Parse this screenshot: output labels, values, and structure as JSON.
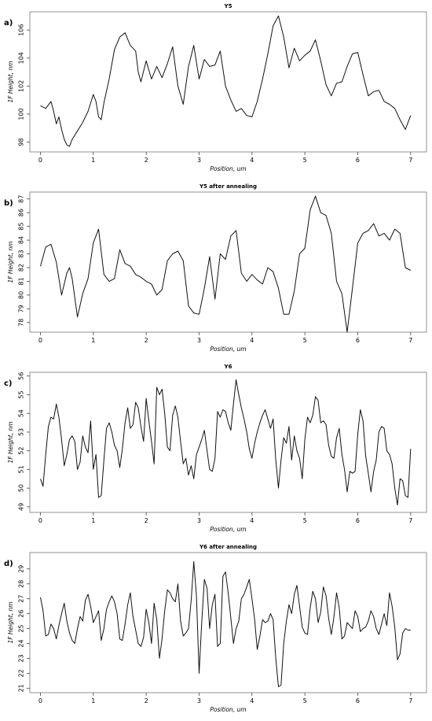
{
  "chart_data": [
    {
      "type": "line",
      "panel_label": "a)",
      "title": "Y5",
      "xlabel": "Position, um",
      "ylabel": "1F Height, nm",
      "xlim": [
        -0.2,
        7.3
      ],
      "ylim": [
        97.3,
        107.3
      ],
      "xticks": [
        0,
        1,
        2,
        3,
        4,
        5,
        6,
        7
      ],
      "yticks": [
        98,
        100,
        102,
        104,
        106
      ],
      "grid": false,
      "series": [
        {
          "x": [
            0.0,
            0.1,
            0.2,
            0.25,
            0.3,
            0.35,
            0.4,
            0.45,
            0.5,
            0.55,
            0.6,
            0.7,
            0.8,
            0.9,
            1.0,
            1.05,
            1.1,
            1.15,
            1.2,
            1.3,
            1.4,
            1.5,
            1.6,
            1.7,
            1.8,
            1.85,
            1.9,
            2.0,
            2.1,
            2.2,
            2.3,
            2.4,
            2.5,
            2.6,
            2.7,
            2.8,
            2.9,
            3.0,
            3.1,
            3.2,
            3.3,
            3.4,
            3.5,
            3.6,
            3.7,
            3.8,
            3.9,
            4.0,
            4.1,
            4.2,
            4.3,
            4.4,
            4.5,
            4.6,
            4.7,
            4.8,
            4.9,
            5.0,
            5.1,
            5.2,
            5.3,
            5.4,
            5.5,
            5.6,
            5.7,
            5.8,
            5.9,
            6.0,
            6.1,
            6.2,
            6.3,
            6.4,
            6.5,
            6.6,
            6.7,
            6.8,
            6.9,
            7.0
          ],
          "values": [
            100.6,
            100.4,
            100.9,
            100.2,
            99.3,
            99.8,
            98.9,
            98.2,
            97.8,
            97.7,
            98.2,
            98.8,
            99.4,
            100.2,
            101.4,
            100.9,
            99.8,
            99.6,
            100.8,
            102.5,
            104.6,
            105.5,
            105.8,
            104.9,
            104.5,
            103.0,
            102.3,
            103.8,
            102.5,
            103.4,
            102.6,
            103.6,
            104.8,
            102.0,
            100.7,
            103.4,
            104.9,
            102.5,
            103.9,
            103.4,
            103.5,
            104.5,
            102.0,
            101.0,
            100.2,
            100.4,
            99.9,
            99.8,
            100.9,
            102.5,
            104.3,
            106.3,
            107.0,
            105.5,
            103.3,
            104.7,
            103.8,
            104.2,
            104.5,
            105.3,
            103.8,
            102.1,
            101.3,
            102.2,
            102.3,
            103.4,
            104.3,
            104.4,
            102.8,
            101.3,
            101.6,
            101.7,
            100.9,
            100.7,
            100.4,
            99.6,
            98.9,
            99.9
          ]
        }
      ]
    },
    {
      "type": "line",
      "panel_label": "b)",
      "title": "Y5 after annealing",
      "xlabel": "Position, um",
      "ylabel": "1F Height, nm",
      "xlim": [
        -0.2,
        7.3
      ],
      "ylim": [
        77.3,
        87.5
      ],
      "xticks": [
        0,
        1,
        2,
        3,
        4,
        5,
        6,
        7
      ],
      "yticks": [
        78,
        79,
        80,
        81,
        82,
        83,
        84,
        85,
        86,
        87
      ],
      "grid": false,
      "series": [
        {
          "x": [
            0.0,
            0.1,
            0.2,
            0.3,
            0.4,
            0.5,
            0.55,
            0.6,
            0.7,
            0.8,
            0.9,
            1.0,
            1.1,
            1.2,
            1.3,
            1.4,
            1.5,
            1.6,
            1.7,
            1.8,
            1.9,
            2.0,
            2.1,
            2.2,
            2.3,
            2.4,
            2.5,
            2.6,
            2.7,
            2.8,
            2.9,
            3.0,
            3.1,
            3.2,
            3.3,
            3.4,
            3.5,
            3.6,
            3.7,
            3.8,
            3.9,
            4.0,
            4.1,
            4.2,
            4.3,
            4.4,
            4.5,
            4.6,
            4.7,
            4.8,
            4.9,
            5.0,
            5.1,
            5.2,
            5.3,
            5.4,
            5.5,
            5.6,
            5.7,
            5.8,
            5.9,
            6.0,
            6.1,
            6.2,
            6.3,
            6.4,
            6.5,
            6.6,
            6.7,
            6.8,
            6.9,
            7.0
          ],
          "values": [
            82.1,
            83.5,
            83.7,
            82.4,
            80.0,
            81.6,
            82.0,
            81.2,
            78.4,
            80.1,
            81.2,
            83.8,
            84.8,
            81.5,
            81.0,
            81.2,
            83.3,
            82.3,
            82.1,
            81.5,
            81.3,
            81.0,
            80.8,
            80.0,
            80.4,
            82.5,
            83.0,
            83.2,
            82.5,
            79.2,
            78.7,
            78.6,
            80.5,
            82.8,
            79.7,
            83.0,
            82.6,
            84.3,
            84.7,
            81.6,
            81.0,
            81.5,
            81.1,
            80.8,
            82.0,
            81.7,
            80.5,
            78.6,
            78.6,
            80.3,
            83.0,
            83.4,
            86.2,
            87.2,
            86.0,
            85.8,
            84.5,
            81.0,
            80.1,
            77.3,
            80.5,
            83.8,
            84.5,
            84.7,
            85.2,
            84.3,
            84.5,
            84.0,
            84.8,
            84.5,
            82.0,
            81.8
          ]
        }
      ]
    },
    {
      "type": "line",
      "panel_label": "c)",
      "title": "Y6",
      "xlabel": "Position, um",
      "ylabel": "1F Height, nm",
      "xlim": [
        -0.2,
        7.3
      ],
      "ylim": [
        48.7,
        56.2
      ],
      "xticks": [
        0,
        1,
        2,
        3,
        4,
        5,
        6,
        7
      ],
      "yticks": [
        49,
        50,
        51,
        52,
        53,
        54,
        55,
        56
      ],
      "grid": false,
      "series": [
        {
          "x": [
            0.0,
            0.05,
            0.1,
            0.15,
            0.2,
            0.25,
            0.3,
            0.35,
            0.4,
            0.45,
            0.5,
            0.55,
            0.6,
            0.65,
            0.7,
            0.75,
            0.8,
            0.85,
            0.9,
            0.95,
            1.0,
            1.05,
            1.1,
            1.15,
            1.2,
            1.25,
            1.3,
            1.35,
            1.4,
            1.45,
            1.5,
            1.55,
            1.6,
            1.65,
            1.7,
            1.75,
            1.8,
            1.85,
            1.9,
            1.95,
            2.0,
            2.05,
            2.1,
            2.15,
            2.2,
            2.25,
            2.3,
            2.35,
            2.4,
            2.45,
            2.5,
            2.55,
            2.6,
            2.65,
            2.7,
            2.75,
            2.8,
            2.85,
            2.9,
            2.95,
            3.0,
            3.05,
            3.1,
            3.15,
            3.2,
            3.25,
            3.3,
            3.35,
            3.4,
            3.45,
            3.5,
            3.55,
            3.6,
            3.65,
            3.7,
            3.75,
            3.8,
            3.85,
            3.9,
            3.95,
            4.0,
            4.05,
            4.1,
            4.15,
            4.2,
            4.25,
            4.3,
            4.35,
            4.4,
            4.45,
            4.5,
            4.55,
            4.6,
            4.65,
            4.7,
            4.75,
            4.8,
            4.85,
            4.9,
            4.95,
            5.0,
            5.05,
            5.1,
            5.15,
            5.2,
            5.25,
            5.3,
            5.35,
            5.4,
            5.45,
            5.5,
            5.55,
            5.6,
            5.65,
            5.7,
            5.75,
            5.8,
            5.85,
            5.9,
            5.95,
            6.0,
            6.05,
            6.1,
            6.15,
            6.2,
            6.25,
            6.3,
            6.35,
            6.4,
            6.45,
            6.5,
            6.55,
            6.6,
            6.65,
            6.7,
            6.75,
            6.8,
            6.85,
            6.9,
            6.95,
            7.0
          ],
          "values": [
            50.5,
            50.1,
            51.8,
            53.3,
            53.8,
            53.7,
            54.5,
            53.8,
            52.6,
            51.2,
            51.8,
            52.6,
            52.8,
            52.5,
            51.0,
            51.4,
            52.8,
            52.2,
            51.9,
            53.6,
            51.0,
            51.8,
            49.5,
            49.6,
            51.5,
            53.2,
            53.5,
            53.0,
            52.3,
            52.0,
            51.1,
            52.1,
            53.5,
            54.3,
            53.2,
            53.4,
            54.6,
            54.3,
            53.3,
            52.5,
            54.8,
            53.6,
            52.5,
            51.3,
            55.4,
            55.0,
            55.3,
            54.0,
            52.2,
            52.0,
            53.9,
            54.4,
            53.8,
            52.5,
            51.3,
            51.6,
            50.7,
            51.2,
            50.5,
            51.8,
            52.2,
            52.6,
            53.1,
            52.0,
            51.0,
            50.9,
            51.6,
            54.1,
            53.8,
            54.2,
            54.1,
            53.5,
            53.1,
            54.5,
            55.8,
            55.0,
            54.3,
            53.7,
            53.0,
            52.1,
            51.6,
            52.4,
            53.0,
            53.5,
            53.9,
            54.2,
            53.7,
            53.2,
            53.7,
            51.5,
            50.0,
            51.5,
            52.7,
            52.4,
            53.3,
            51.5,
            52.8,
            52.0,
            51.6,
            50.5,
            52.6,
            53.8,
            53.5,
            53.9,
            54.9,
            54.7,
            53.5,
            53.6,
            53.4,
            52.3,
            51.7,
            51.6,
            52.7,
            53.2,
            51.8,
            51.0,
            49.8,
            50.9,
            50.8,
            50.9,
            52.9,
            54.2,
            53.6,
            51.7,
            50.8,
            49.8,
            50.9,
            51.5,
            53.0,
            53.3,
            53.2,
            52.0,
            51.8,
            51.3,
            50.0,
            49.1,
            50.5,
            50.4,
            49.6,
            49.5,
            52.1
          ]
        }
      ]
    },
    {
      "type": "line",
      "panel_label": "d)",
      "title": "Y6 after annealing",
      "xlabel": "Position, um",
      "ylabel": "1F Height, nm",
      "xlim": [
        -0.2,
        7.3
      ],
      "ylim": [
        20.7,
        30.1
      ],
      "xticks": [
        0,
        1,
        2,
        3,
        4,
        5,
        6,
        7
      ],
      "yticks": [
        21,
        22,
        23,
        24,
        25,
        26,
        27,
        28,
        29
      ],
      "grid": false,
      "series": [
        {
          "x": [
            0.0,
            0.05,
            0.1,
            0.15,
            0.2,
            0.25,
            0.3,
            0.35,
            0.4,
            0.45,
            0.5,
            0.55,
            0.6,
            0.65,
            0.7,
            0.75,
            0.8,
            0.85,
            0.9,
            0.95,
            1.0,
            1.05,
            1.1,
            1.15,
            1.2,
            1.25,
            1.3,
            1.35,
            1.4,
            1.45,
            1.5,
            1.55,
            1.6,
            1.65,
            1.7,
            1.75,
            1.8,
            1.85,
            1.9,
            1.95,
            2.0,
            2.05,
            2.1,
            2.15,
            2.2,
            2.25,
            2.3,
            2.35,
            2.4,
            2.45,
            2.5,
            2.55,
            2.6,
            2.65,
            2.7,
            2.75,
            2.8,
            2.85,
            2.9,
            2.95,
            3.0,
            3.05,
            3.1,
            3.15,
            3.2,
            3.25,
            3.3,
            3.35,
            3.4,
            3.45,
            3.5,
            3.55,
            3.6,
            3.65,
            3.7,
            3.75,
            3.8,
            3.85,
            3.9,
            3.95,
            4.0,
            4.05,
            4.1,
            4.15,
            4.2,
            4.25,
            4.3,
            4.35,
            4.4,
            4.45,
            4.5,
            4.55,
            4.6,
            4.65,
            4.7,
            4.75,
            4.8,
            4.85,
            4.9,
            4.95,
            5.0,
            5.05,
            5.1,
            5.15,
            5.2,
            5.25,
            5.3,
            5.35,
            5.4,
            5.45,
            5.5,
            5.55,
            5.6,
            5.65,
            5.7,
            5.75,
            5.8,
            5.85,
            5.9,
            5.95,
            6.0,
            6.05,
            6.1,
            6.15,
            6.2,
            6.25,
            6.3,
            6.35,
            6.4,
            6.45,
            6.5,
            6.55,
            6.6,
            6.65,
            6.7,
            6.75,
            6.8,
            6.85,
            6.9,
            6.95,
            7.0
          ],
          "values": [
            27.1,
            26.2,
            24.5,
            24.6,
            25.3,
            25.0,
            24.3,
            25.2,
            26.0,
            26.7,
            25.5,
            24.7,
            24.2,
            24.0,
            25.0,
            25.8,
            25.5,
            26.9,
            27.3,
            26.5,
            25.4,
            25.8,
            26.2,
            24.2,
            25.0,
            26.3,
            26.8,
            27.2,
            26.8,
            26.0,
            24.3,
            24.2,
            25.3,
            26.6,
            27.4,
            25.8,
            24.9,
            24.0,
            23.8,
            24.4,
            26.3,
            25.4,
            24.0,
            26.7,
            25.6,
            23.0,
            24.3,
            26.2,
            27.6,
            27.4,
            27.0,
            26.8,
            28.0,
            25.5,
            24.5,
            24.7,
            25.0,
            26.9,
            29.5,
            27.2,
            22.0,
            25.4,
            28.3,
            27.7,
            25.0,
            26.6,
            27.3,
            23.8,
            24.0,
            28.5,
            28.8,
            27.4,
            25.7,
            24.0,
            25.0,
            25.5,
            27.0,
            27.3,
            27.8,
            28.3,
            27.0,
            25.6,
            23.6,
            24.5,
            25.6,
            25.4,
            25.5,
            26.0,
            25.6,
            23.0,
            21.1,
            21.2,
            24.0,
            25.5,
            26.6,
            26.0,
            27.3,
            27.9,
            26.5,
            25.1,
            24.7,
            24.6,
            26.4,
            27.5,
            27.0,
            25.4,
            26.1,
            27.8,
            27.2,
            25.7,
            24.6,
            25.8,
            27.4,
            26.4,
            24.3,
            24.5,
            25.4,
            25.2,
            25.0,
            26.2,
            25.8,
            24.8,
            25.0,
            25.1,
            25.5,
            26.2,
            25.8,
            25.0,
            24.6,
            25.3,
            26.0,
            25.2,
            27.4,
            26.5,
            25.1,
            22.9,
            23.3,
            24.7,
            25.0,
            24.9,
            24.9
          ]
        }
      ]
    }
  ]
}
